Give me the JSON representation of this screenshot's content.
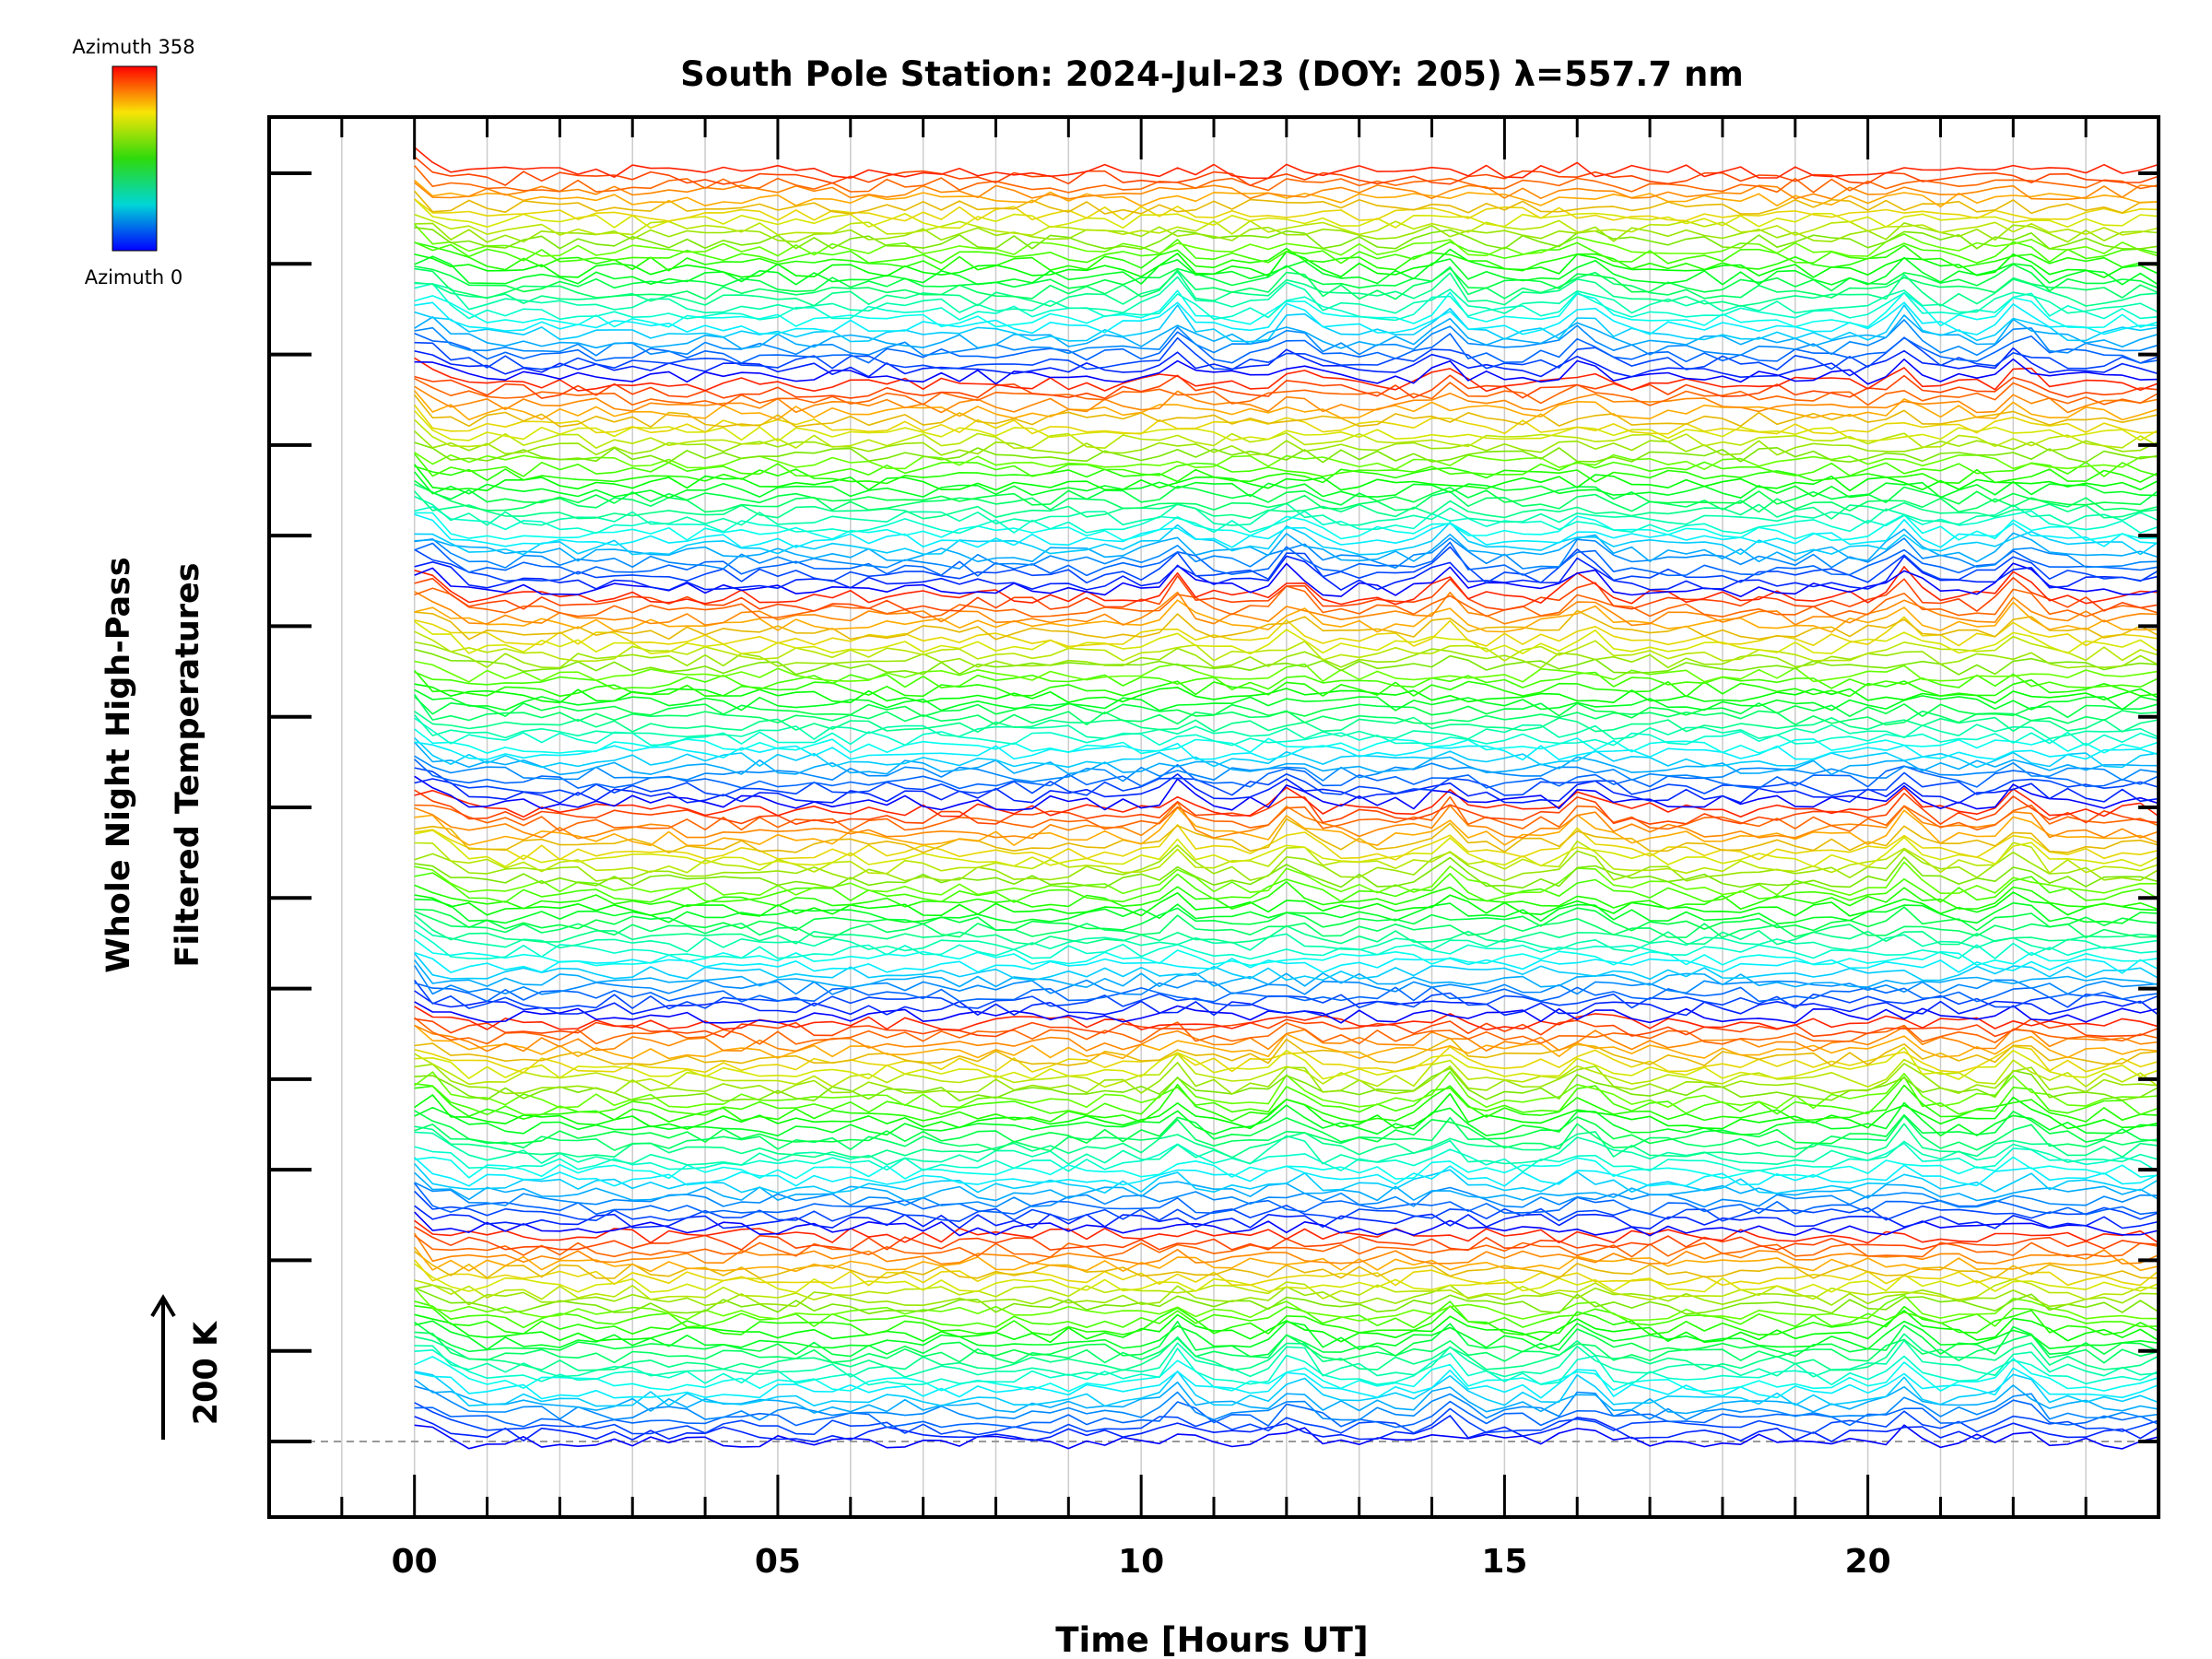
{
  "chart_data": {
    "type": "line",
    "title": "South Pole Station: 2024-Jul-23 (DOY: 205) λ=557.7 nm",
    "xlabel": "Time [Hours UT]",
    "ylabel_line1": "Whole Night High-Pass",
    "ylabel_line2": "Filtered Temperatures",
    "xlim": [
      -2,
      24
    ],
    "x_ticks": [
      {
        "value": 0,
        "label": "00"
      },
      {
        "value": 5,
        "label": "05"
      },
      {
        "value": 10,
        "label": "10"
      },
      {
        "value": 15,
        "label": "15"
      },
      {
        "value": 20,
        "label": "20"
      }
    ],
    "x_minor_step": 1,
    "y_major_tick_count": 15,
    "grid": "vertical-hourly",
    "baseline": "dashed",
    "scale_bar": {
      "label": "200 K",
      "value_K": 200
    },
    "colorbar": {
      "label_top": "Azimuth 358",
      "label_bottom": "Azimuth 0",
      "min": 0,
      "max": 358,
      "colormap": "rainbow"
    },
    "series_description": {
      "offset_series_count": 180,
      "time_start_hour": 0,
      "time_end_hour": 24,
      "time_step_hour": 0.25,
      "azimuth_cycles": 6,
      "notable_events_hour": [
        0.3,
        10.5,
        12.1,
        14.2,
        16.1,
        20.5,
        22.1
      ]
    }
  },
  "colors": {
    "axis": "#000000",
    "grid": "#cccccc",
    "baseline": "#999999"
  }
}
